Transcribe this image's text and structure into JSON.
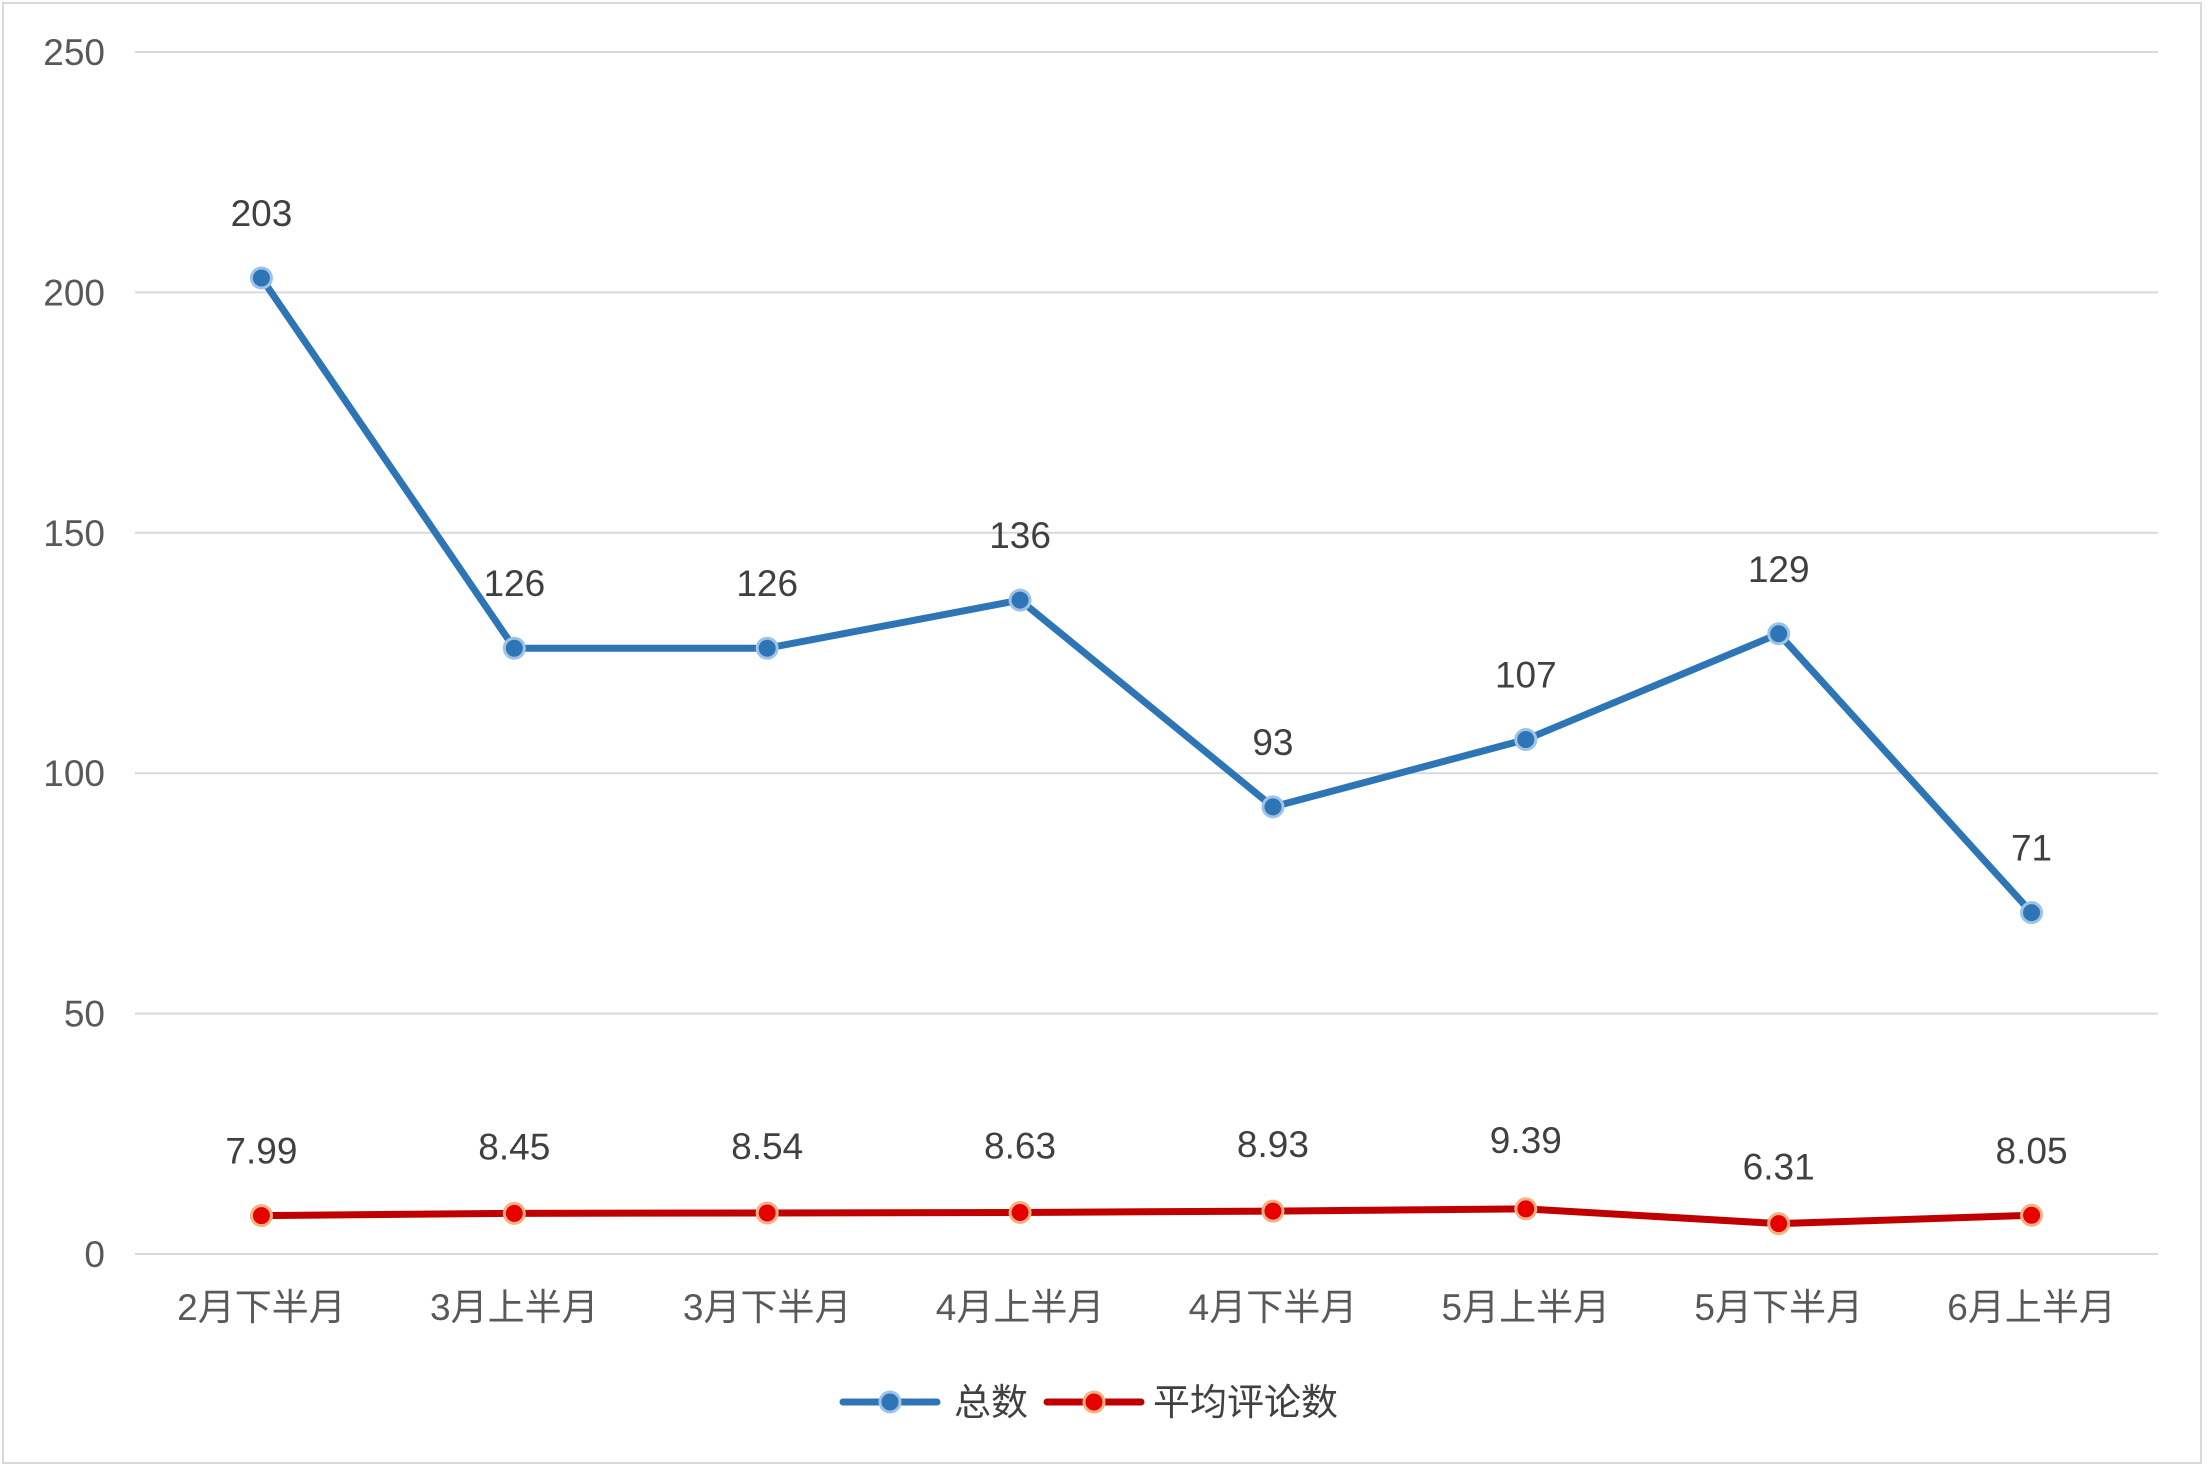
{
  "chart_data": {
    "type": "line",
    "categories": [
      "2月下半月",
      "3月上半月",
      "3月下半月",
      "4月上半月",
      "4月下半月",
      "5月上半月",
      "5月下半月",
      "6月上半月"
    ],
    "series": [
      {
        "name": "总数",
        "values": [
          203,
          126,
          126,
          136,
          93,
          107,
          129,
          71
        ],
        "color": "#2e75b6",
        "labels": [
          "203",
          "126",
          "126",
          "136",
          "93",
          "107",
          "129",
          "71"
        ]
      },
      {
        "name": "平均评论数",
        "values": [
          7.99,
          8.45,
          8.54,
          8.63,
          8.93,
          9.39,
          6.31,
          8.05
        ],
        "color": "#c00000",
        "marker_fill": "#e60000",
        "marker_edge": "#f4b183",
        "labels": [
          "7.99",
          "8.45",
          "8.54",
          "8.63",
          "8.93",
          "9.39",
          "6.31",
          "8.05"
        ]
      }
    ],
    "ylim": [
      0,
      250
    ],
    "yticks": [
      "0",
      "50",
      "100",
      "150",
      "200",
      "250"
    ],
    "grid": true,
    "legend": "bottom-center"
  }
}
